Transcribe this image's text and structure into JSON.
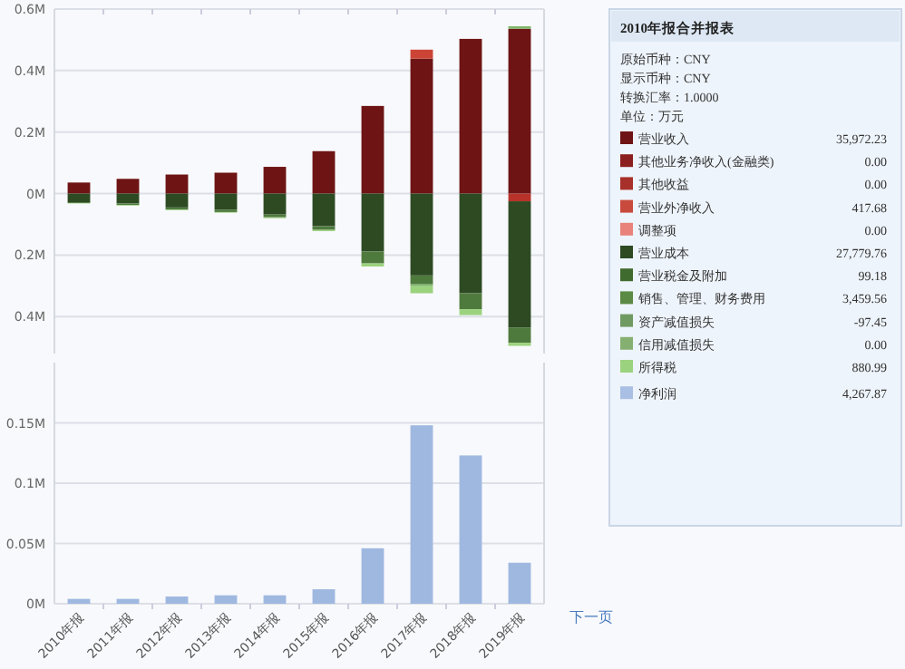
{
  "chart_data": [
    {
      "type": "bar",
      "stacked": true,
      "grid": "y",
      "categories": [
        null,
        null,
        null,
        null,
        null,
        null,
        null,
        null,
        null,
        null
      ],
      "ylim": [
        -520000,
        600000
      ],
      "yticks": [
        {
          "value": -400000,
          "label": "0.4M"
        },
        {
          "value": -200000,
          "label": "0.2M"
        },
        {
          "value": 0,
          "label": "0M"
        },
        {
          "value": 200000,
          "label": "0.2M"
        },
        {
          "value": 400000,
          "label": "0.4M"
        },
        {
          "value": 600000,
          "label": "0.6M"
        }
      ],
      "series": [
        {
          "color": "#6e1414",
          "values": [
            36000,
            48000,
            62000,
            68000,
            87000,
            138000,
            285000,
            439000,
            503000,
            536000
          ]
        },
        {
          "color": "#b8322a",
          "values": [
            null,
            null,
            null,
            null,
            null,
            null,
            null,
            null,
            null,
            -25000
          ]
        },
        {
          "color": "#cc4436",
          "values": [
            null,
            null,
            null,
            null,
            null,
            null,
            null,
            29000,
            null,
            null
          ]
        },
        {
          "color": "#2d4a23",
          "values": [
            -28000,
            -32000,
            -45000,
            -52000,
            -68000,
            -106000,
            -188000,
            -266000,
            -324000,
            -410000
          ]
        },
        {
          "color": "#4f7a3e",
          "values": [
            -3000,
            -5000,
            -7000,
            -8000,
            -9000,
            -12000,
            -39000,
            -29000,
            -52000,
            -50000
          ]
        },
        {
          "color": "#7fb56a",
          "values": [
            null,
            null,
            null,
            null,
            null,
            null,
            null,
            -6000,
            null,
            8000
          ]
        },
        {
          "color": "#9bd27e",
          "values": [
            -1000,
            -2000,
            -2000,
            -2000,
            -3000,
            -4000,
            -10000,
            -23000,
            -19000,
            -10000
          ]
        }
      ]
    },
    {
      "type": "bar",
      "grid": "y",
      "categories": [
        "2010年报",
        "2011年报",
        "2012年报",
        "2013年报",
        "2014年报",
        "2015年报",
        "2016年报",
        "2017年报",
        "2018年报",
        "2019年报"
      ],
      "ylim": [
        0,
        200000
      ],
      "yticks": [
        {
          "value": 0,
          "label": "0M"
        },
        {
          "value": 50000,
          "label": "0.05M"
        },
        {
          "value": 100000,
          "label": "0.1M"
        },
        {
          "value": 150000,
          "label": "0.15M"
        }
      ],
      "series": [
        {
          "color": "#9fb8e0",
          "values": [
            4000,
            4000,
            6000,
            7000,
            7000,
            12000,
            46000,
            148000,
            123000,
            34000
          ]
        }
      ],
      "annotations": [
        "下一页"
      ]
    },
    {
      "type": "other",
      "title": "2010年报合并报表",
      "annotations": [
        "原始币种：CNY",
        "显示币种：CNY",
        "转换汇率：1.0000",
        "单位：万元"
      ],
      "categories": [
        "营业收入",
        "其他业务净收入(金融类)",
        "其他收益",
        "营业外净收入",
        "调整项",
        "营业成本",
        "营业税金及附加",
        "销售、管理、财务费用",
        "资产减值损失",
        "信用减值损失",
        "所得税",
        "净利润"
      ],
      "value_labels": [
        "35,972.23",
        "0.00",
        "0.00",
        "417.68",
        "0.00",
        "27,779.76",
        "99.18",
        "3,459.56",
        "-97.45",
        "0.00",
        "880.99",
        "4,267.87"
      ],
      "colors": [
        "#6e1414",
        "#8b1e1e",
        "#a8302a",
        "#c84a3c",
        "#e8827a",
        "#2d4a23",
        "#3f6b2e",
        "#5a8a44",
        "#6f9a62",
        "#86b072",
        "#9bd27e",
        "#a9bfe3"
      ]
    }
  ]
}
